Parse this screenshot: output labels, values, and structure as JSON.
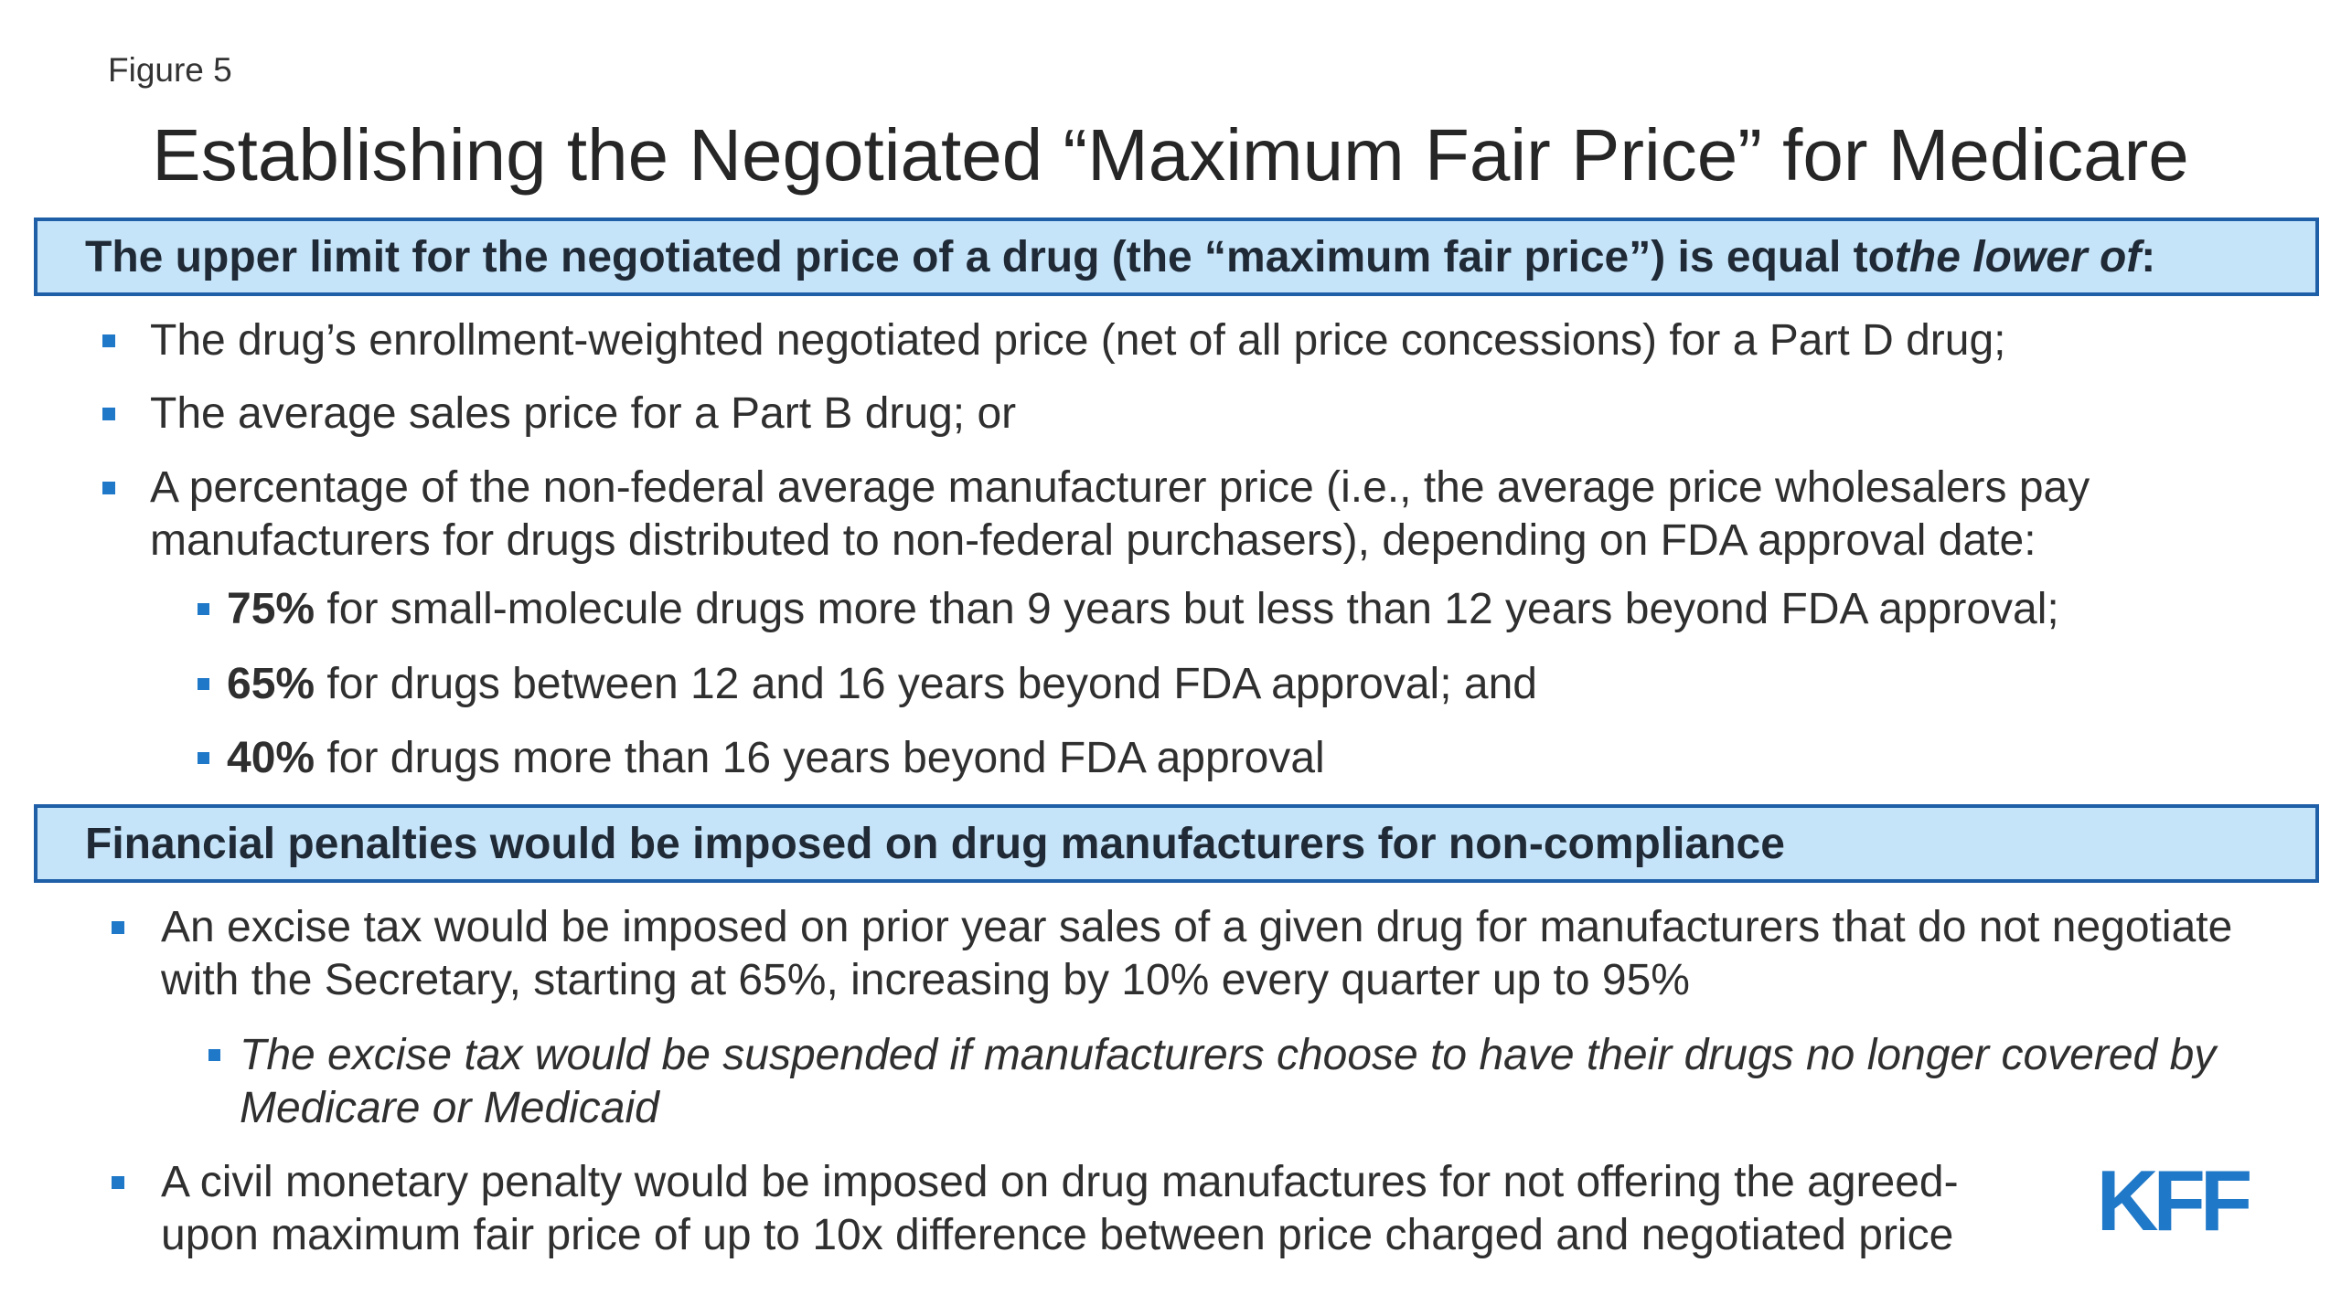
{
  "figure_label": "Figure 5",
  "title": "Establishing the Negotiated “Maximum Fair Price” for Medicare",
  "section1": {
    "header_text": "The upper limit for the negotiated price of a drug (the “maximum fair price”) is equal to ",
    "header_italic": "the lower of",
    "header_end": ":",
    "bullets": [
      "The drug’s enrollment-weighted negotiated price (net of all price concessions) for a Part D drug;",
      "The average sales price for a Part B drug; or",
      "A percentage of the non-federal average manufacturer price (i.e., the average price wholesalers pay manufacturers for drugs distributed to non-federal purchasers), depending on FDA approval date:"
    ],
    "sub_bullets": [
      {
        "percent": "75%",
        "text": " for small-molecule drugs more than 9 years but less than 12 years beyond FDA approval;"
      },
      {
        "percent": "65%",
        "text": " for drugs between 12 and 16 years beyond FDA approval; and"
      },
      {
        "percent": "40%",
        "text": " for drugs more than 16 years beyond FDA approval"
      }
    ]
  },
  "section2": {
    "header_text": "Financial penalties would be imposed on drug manufacturers for non-compliance",
    "bullets": [
      "An excise tax would be imposed on prior year sales of a given drug for manufacturers that do not negotiate with the Secretary, starting at 65%, increasing by 10% every quarter up to 95%",
      "A civil monetary penalty would be imposed on drug manufactures for not offering the agreed-upon maximum fair price of up to 10x difference between price charged and negotiated price"
    ],
    "sub_bullet": "The excise tax would be suspended if manufacturers choose to have their drugs no longer covered by Medicare or Medicaid"
  },
  "logo": {
    "text": "KFF",
    "color": "#1f78c8"
  },
  "colors": {
    "header_fill": "#c6e4f9",
    "header_border": "#1f5fa8",
    "bullet": "#1f78c8"
  }
}
